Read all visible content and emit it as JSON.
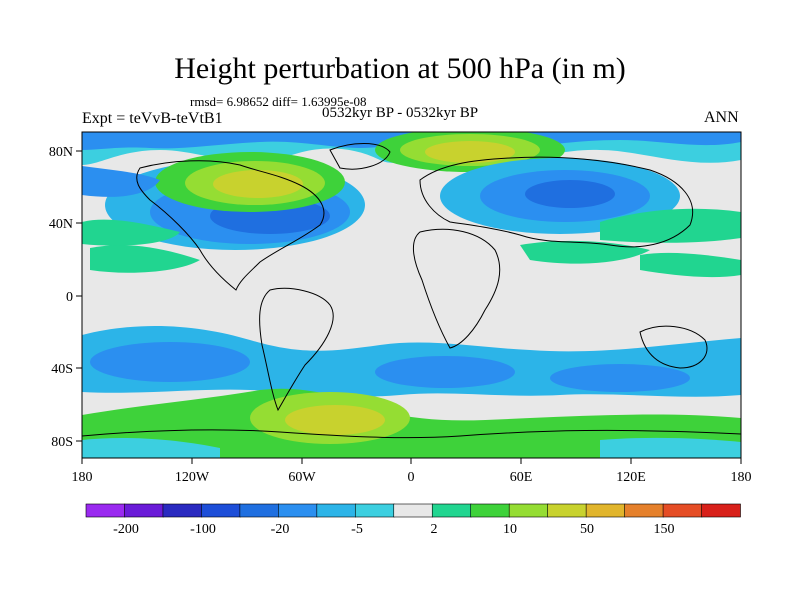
{
  "title": "Height perturbation at 500 hPa (in m)",
  "stats": "rmsd= 6.98652 diff= 1.63995e-08",
  "experiment": "Expt = teVvB-teVtB1",
  "period": "0532kyr BP - 0532kyr BP",
  "season": "ANN",
  "map": {
    "lat_ticks": [
      "80N",
      "40N",
      "0",
      "40S",
      "80S"
    ],
    "lon_ticks": [
      "180",
      "120W",
      "60W",
      "0",
      "60E",
      "120E",
      "180"
    ]
  },
  "colorbar": {
    "labels": [
      "-200",
      "-100",
      "-20",
      "-5",
      "2",
      "10",
      "50",
      "150"
    ],
    "colors": [
      "#9a2af0",
      "#6a1bd8",
      "#2a2ac0",
      "#1d4ed8",
      "#1f6fe0",
      "#2b8ff0",
      "#2cb4e8",
      "#3ccfe0",
      "#e8e8e8",
      "#21d590",
      "#3ed23a",
      "#95dd33",
      "#c8d22e",
      "#e1b52c",
      "#e5802b",
      "#e54d25",
      "#d8201a"
    ]
  }
}
